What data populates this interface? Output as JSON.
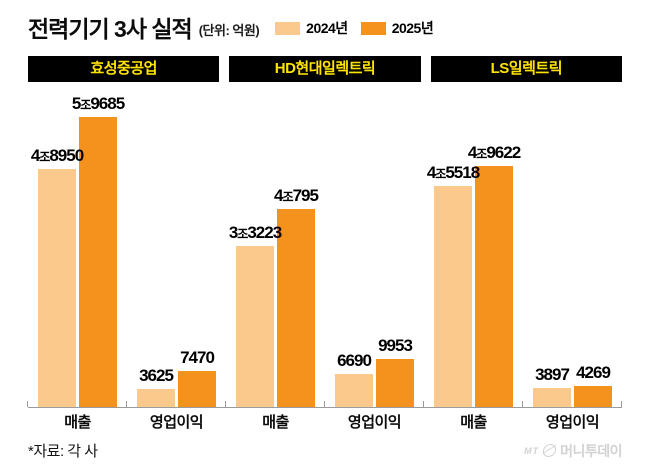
{
  "header": {
    "title": "전력기기 3사 실적",
    "unit_note": "(단위: 억원)"
  },
  "legend": {
    "position": "top",
    "items": [
      {
        "label": "2024년",
        "color": "#FCC98C"
      },
      {
        "label": "2025년",
        "color": "#F4921E"
      }
    ]
  },
  "chart_data": {
    "type": "bar",
    "title": "전력기기 3사 실적",
    "unit": "억원",
    "series": [
      "2024년",
      "2025년"
    ],
    "colors": [
      "#FCC98C",
      "#F4921E"
    ],
    "categories": [
      "매출",
      "영업이익"
    ],
    "ylim": [
      0,
      62000
    ],
    "grid": "off",
    "legend_position": "top",
    "companies": [
      {
        "name": "효성중공업",
        "metrics": [
          {
            "label": "매출",
            "values": [
              48950,
              59685
            ],
            "display": [
              "4조8950",
              "5조9685"
            ]
          },
          {
            "label": "영업이익",
            "values": [
              3625,
              7470
            ],
            "display": [
              "3625",
              "7470"
            ]
          }
        ]
      },
      {
        "name": "HD현대일렉트릭",
        "metrics": [
          {
            "label": "매출",
            "values": [
              33223,
              40795
            ],
            "display": [
              "3조3223",
              "4조795"
            ]
          },
          {
            "label": "영업이익",
            "values": [
              6690,
              9953
            ],
            "display": [
              "6690",
              "9953"
            ]
          }
        ]
      },
      {
        "name": "LS일렉트릭",
        "metrics": [
          {
            "label": "매출",
            "values": [
              45518,
              49622
            ],
            "display": [
              "4조5518",
              "4조9622"
            ]
          },
          {
            "label": "영업이익",
            "values": [
              3897,
              4269
            ],
            "display": [
              "3897",
              "4269"
            ]
          }
        ]
      }
    ]
  },
  "footer": {
    "source": "*자료: 각 사",
    "watermark_mt": "MT",
    "watermark_name": "머니투데이"
  }
}
